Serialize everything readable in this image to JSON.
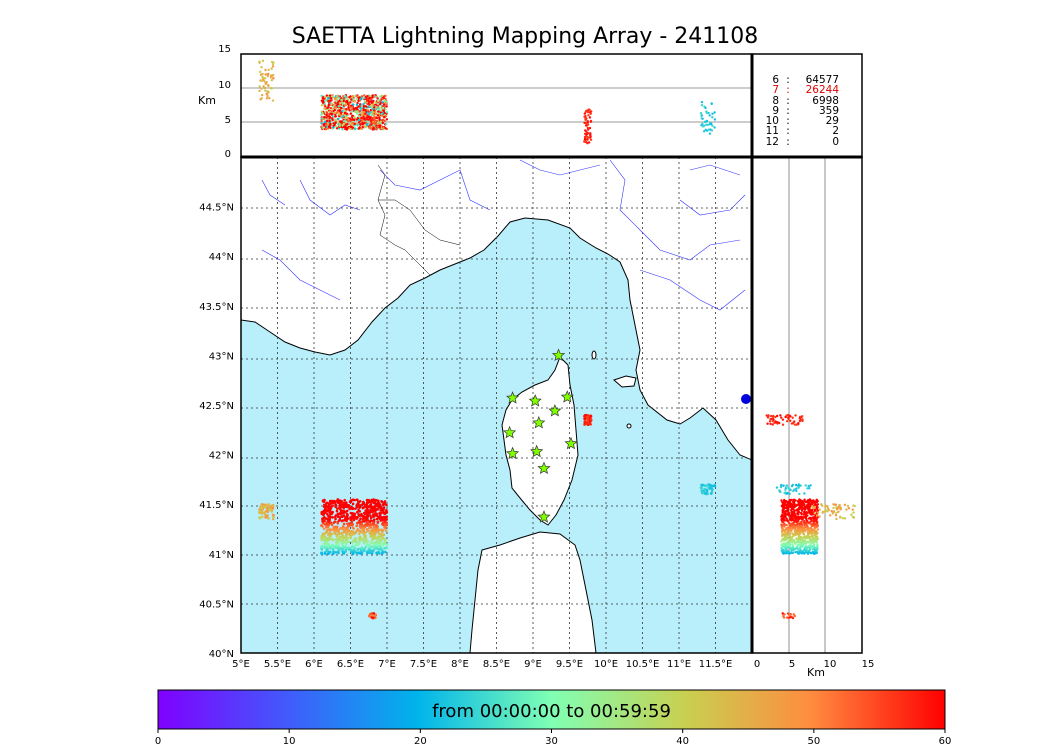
{
  "title": "SAETTA Lightning Mapping Array - 241108",
  "colorbar": {
    "label": "from 00:00:00 to 00:59:59",
    "ticks": [
      "0",
      "10",
      "20",
      "30",
      "40",
      "50",
      "60"
    ]
  },
  "top_panel": {
    "ylabel": "Km",
    "yticks": [
      "0",
      "5",
      "10",
      "15"
    ]
  },
  "right_panel": {
    "xlabel": "Km",
    "xticks": [
      "0",
      "5",
      "10",
      "15"
    ]
  },
  "map": {
    "lon_ticks": [
      "5°E",
      "5.5°E",
      "6°E",
      "6.5°E",
      "7°E",
      "7.5°E",
      "8°E",
      "8.5°E",
      "9°E",
      "9.5°E",
      "10°E",
      "10.5°E",
      "11°E",
      "11.5°E"
    ],
    "lat_ticks": [
      "40°N",
      "40.5°N",
      "41°N",
      "41.5°N",
      "42°N",
      "42.5°N",
      "43°N",
      "43.5°N",
      "44°N",
      "44.5°N"
    ]
  },
  "station_counts": [
    {
      "stations": "6",
      "count": "64577",
      "highlight": false
    },
    {
      "stations": "7",
      "count": "26244",
      "highlight": true
    },
    {
      "stations": "8",
      "count": "6998",
      "highlight": false
    },
    {
      "stations": "9",
      "count": "359",
      "highlight": false
    },
    {
      "stations": "10",
      "count": "29",
      "highlight": false
    },
    {
      "stations": "11",
      "count": "2",
      "highlight": false
    },
    {
      "stations": "12",
      "count": "0",
      "highlight": false
    }
  ],
  "chart_data": {
    "type": "scatter",
    "title": "SAETTA Lightning Mapping Array - 241108",
    "xlim": [
      5.0,
      12.0
    ],
    "ylim": [
      40.0,
      45.0
    ],
    "altitude_range_km": [
      0,
      15
    ],
    "color_variable": "time (minutes)",
    "color_range": [
      0,
      60
    ],
    "colormap": "rainbow",
    "sources": [
      {
        "name": "",
        "lon_range": [
          6.1,
          7.0
        ],
        "lat_range": [
          41.0,
          41.55
        ],
        "alt_km": [
          4,
          9
        ],
        "time_min": [
          10,
          60
        ]
      },
      {
        "name": "",
        "lon_range": [
          5.25,
          5.45
        ],
        "lat_range": [
          41.35,
          41.5
        ],
        "alt_km": [
          8,
          14
        ],
        "time_min": [
          40,
          50
        ]
      },
      {
        "name": "",
        "lon_range": [
          9.7,
          9.8
        ],
        "lat_range": [
          42.3,
          42.4
        ],
        "alt_km": [
          2,
          7
        ],
        "time_min": [
          55,
          60
        ]
      },
      {
        "name": "",
        "lon_range": [
          11.3,
          11.5
        ],
        "lat_range": [
          41.6,
          41.7
        ],
        "alt_km": [
          3,
          8
        ],
        "time_min": [
          20,
          25
        ]
      },
      {
        "name": "",
        "lon_range": [
          6.75,
          6.85
        ],
        "lat_range": [
          40.35,
          40.4
        ],
        "alt_km": [
          4,
          6
        ],
        "time_min": [
          50,
          60
        ]
      }
    ],
    "stations": [
      [
        9.35,
        43.0
      ],
      [
        8.72,
        42.57
      ],
      [
        9.03,
        42.54
      ],
      [
        9.47,
        42.58
      ],
      [
        9.3,
        42.44
      ],
      [
        9.08,
        42.32
      ],
      [
        8.68,
        42.22
      ],
      [
        9.52,
        42.11
      ],
      [
        8.72,
        42.01
      ],
      [
        9.05,
        42.03
      ],
      [
        9.15,
        41.86
      ],
      [
        9.15,
        41.37
      ]
    ]
  }
}
